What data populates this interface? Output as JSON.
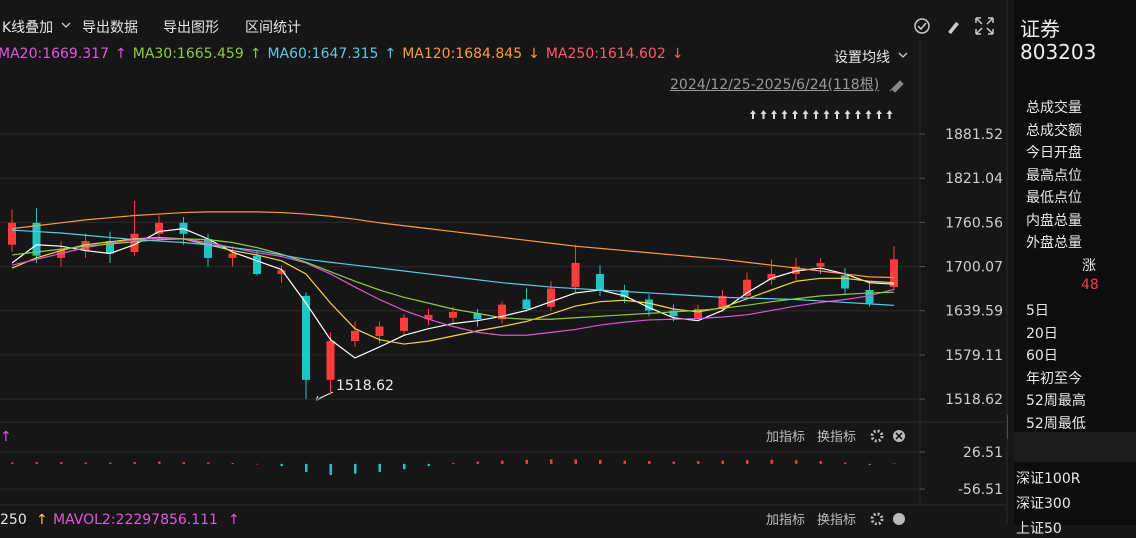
{
  "toolbar": {
    "menus": [
      "K线叠加",
      "导出数据",
      "导出图形",
      "区间统计"
    ]
  },
  "ma_legend": [
    {
      "text": "MA20:1669.317",
      "arrow": "↑",
      "color": "#e455e4"
    },
    {
      "text": "MA30:1665.459",
      "arrow": "↑",
      "color": "#8fcc3a"
    },
    {
      "text": "MA60:1647.315",
      "arrow": "↑",
      "color": "#5ec8e8"
    },
    {
      "text": "MA120:1684.845",
      "arrow": "↓",
      "color": "#ff9a3c"
    },
    {
      "text": "MA250:1614.602",
      "arrow": "↓",
      "color": "#ff5a6e"
    }
  ],
  "ma_settings": "设置均线",
  "range_label": "2024/12/25-2025/6/24(118根)",
  "chart_data": [
    {
      "type": "candlestick",
      "open": [
        1730,
        1760,
        1712,
        1722,
        1735,
        1720,
        1745,
        1760,
        1738,
        1712,
        1715,
        1690,
        1660,
        1545,
        1598,
        1605,
        1612,
        1628,
        1630,
        1636,
        1628,
        1655,
        1645,
        1672,
        1690,
        1668,
        1655,
        1640,
        1630,
        1642,
        1660,
        1682,
        1690,
        1700,
        1688,
        1668,
        1672
      ],
      "high": [
        1778,
        1780,
        1735,
        1745,
        1748,
        1790,
        1770,
        1768,
        1745,
        1728,
        1722,
        1702,
        1665,
        1610,
        1625,
        1625,
        1635,
        1642,
        1645,
        1642,
        1652,
        1670,
        1680,
        1730,
        1702,
        1675,
        1662,
        1648,
        1648,
        1668,
        1692,
        1710,
        1712,
        1712,
        1698,
        1678,
        1728
      ],
      "low": [
        1720,
        1705,
        1700,
        1712,
        1705,
        1715,
        1735,
        1730,
        1700,
        1700,
        1688,
        1678,
        1518.62,
        1525,
        1590,
        1595,
        1605,
        1620,
        1622,
        1618,
        1622,
        1638,
        1640,
        1665,
        1660,
        1650,
        1632,
        1625,
        1625,
        1638,
        1655,
        1675,
        1682,
        1690,
        1662,
        1645,
        1668
      ],
      "close": [
        1760,
        1715,
        1722,
        1735,
        1718,
        1745,
        1760,
        1745,
        1712,
        1718,
        1690,
        1695,
        1545,
        1598,
        1612,
        1618,
        1630,
        1634,
        1638,
        1628,
        1648,
        1642,
        1670,
        1705,
        1668,
        1658,
        1640,
        1632,
        1642,
        1660,
        1682,
        1690,
        1700,
        1705,
        1670,
        1650,
        1710
      ],
      "up_color": "#ff3b3b",
      "down_color": "#22c4c4",
      "lines": [
        {
          "color": "#ffffff",
          "values": [
            1705,
            1730,
            1728,
            1722,
            1718,
            1730,
            1748,
            1752,
            1738,
            1720,
            1708,
            1696,
            1650,
            1600,
            1575,
            1590,
            1606,
            1615,
            1622,
            1626,
            1632,
            1640,
            1652,
            1664,
            1668,
            1660,
            1644,
            1630,
            1626,
            1640,
            1664,
            1684,
            1694,
            1698,
            1690,
            1678,
            1676
          ]
        },
        {
          "color": "#f5d442",
          "values": [
            1698,
            1712,
            1722,
            1730,
            1734,
            1738,
            1740,
            1738,
            1730,
            1722,
            1716,
            1708,
            1690,
            1650,
            1615,
            1600,
            1594,
            1598,
            1605,
            1612,
            1618,
            1625,
            1635,
            1646,
            1652,
            1654,
            1650,
            1642,
            1638,
            1644,
            1656,
            1668,
            1680,
            1684,
            1684,
            1680,
            1678
          ]
        },
        {
          "color": "#d955d9",
          "values": [
            1702,
            1710,
            1718,
            1726,
            1732,
            1737,
            1739,
            1738,
            1733,
            1726,
            1719,
            1714,
            1705,
            1690,
            1672,
            1655,
            1640,
            1628,
            1618,
            1610,
            1606,
            1606,
            1610,
            1614,
            1620,
            1624,
            1627,
            1628,
            1629,
            1631,
            1634,
            1640,
            1646,
            1651,
            1655,
            1660,
            1669
          ]
        },
        {
          "color": "#8fcc3a",
          "values": [
            1716,
            1720,
            1724,
            1728,
            1731,
            1734,
            1737,
            1738,
            1737,
            1733,
            1726,
            1717,
            1706,
            1693,
            1680,
            1668,
            1658,
            1650,
            1642,
            1636,
            1630,
            1628,
            1628,
            1630,
            1632,
            1634,
            1636,
            1638,
            1640,
            1643,
            1647,
            1652,
            1656,
            1660,
            1662,
            1664,
            1665
          ]
        },
        {
          "color": "#5ec8e8",
          "values": [
            1750,
            1748,
            1746,
            1743,
            1740,
            1737,
            1735,
            1733,
            1730,
            1726,
            1722,
            1716,
            1710,
            1706,
            1702,
            1698,
            1694,
            1690,
            1686,
            1682,
            1678,
            1675,
            1672,
            1670,
            1668,
            1666,
            1664,
            1662,
            1660,
            1658,
            1657,
            1656,
            1655,
            1653,
            1651,
            1649,
            1647
          ]
        },
        {
          "color": "#ff9a3c",
          "values": [
            1752,
            1756,
            1760,
            1764,
            1767,
            1770,
            1772,
            1774,
            1775,
            1775,
            1775,
            1774,
            1772,
            1769,
            1765,
            1760,
            1756,
            1752,
            1748,
            1744,
            1740,
            1736,
            1732,
            1728,
            1725,
            1722,
            1719,
            1716,
            1713,
            1710,
            1706,
            1702,
            1698,
            1694,
            1690,
            1686,
            1685
          ]
        }
      ],
      "annotation": "1518.62",
      "ylim": [
        1490,
        1935
      ],
      "yticks": [
        1881.52,
        1821.04,
        1760.56,
        1700.07,
        1639.59,
        1579.11,
        1518.62
      ],
      "grid": true
    },
    {
      "type": "bar",
      "values": [
        3,
        4,
        4,
        3,
        3,
        4,
        5,
        4,
        3,
        2,
        0,
        -5,
        -18,
        -25,
        -22,
        -18,
        -12,
        -5,
        2,
        5,
        7,
        9,
        10,
        10,
        9,
        7,
        6,
        5,
        6,
        7,
        8,
        9,
        8,
        6,
        3,
        -2,
        1
      ],
      "up_color": "#ff3b3b",
      "down_color": "#22c4c4",
      "ylim": [
        -81,
        49
      ],
      "yticks": [
        26.51,
        -56.51
      ],
      "grid": true
    }
  ],
  "indicator_header": {
    "left": "↑",
    "buttons": [
      "加指标",
      "换指标"
    ]
  },
  "volume_header": {
    "left": [
      "250",
      "↑",
      "MAVOL2:22297856.111",
      "↑"
    ],
    "buttons": [
      "加指标",
      "换指标"
    ]
  },
  "sidebar": {
    "title": "证券",
    "code": "803203",
    "fields": [
      "总成交量",
      "总成交额",
      "今日开盘",
      "最高点位",
      "最低点位",
      "内盘总量",
      "外盘总量"
    ],
    "change_label": "涨",
    "change_value": "48",
    "periods": [
      "5日",
      "20日",
      "60日",
      "年初至今",
      "52周最高",
      "52周最低"
    ],
    "indices": [
      "深证100R",
      "深证300",
      "上证50"
    ]
  }
}
